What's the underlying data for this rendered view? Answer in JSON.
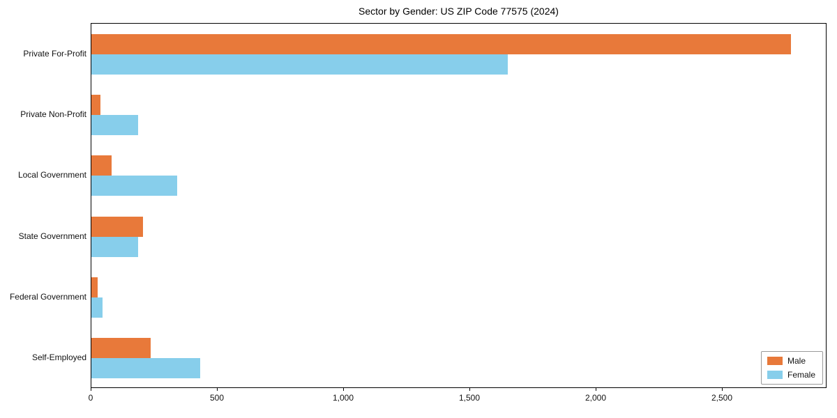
{
  "chart_data": {
    "type": "bar",
    "orientation": "horizontal",
    "title": "Sector by Gender: US ZIP Code 77575 (2024)",
    "categories": [
      "Private For-Profit",
      "Private Non-Profit",
      "Local Government",
      "State Government",
      "Federal Government",
      "Self-Employed"
    ],
    "series": [
      {
        "name": "Male",
        "color": "#e8793a",
        "values": [
          2770,
          35,
          80,
          205,
          25,
          235
        ]
      },
      {
        "name": "Female",
        "color": "#87ceeb",
        "values": [
          1650,
          185,
          340,
          185,
          45,
          430
        ]
      }
    ],
    "xlim": [
      0,
      2915
    ],
    "xticks": [
      0,
      500,
      1000,
      1500,
      2000,
      2500
    ],
    "xtick_labels": [
      "0",
      "500",
      "1,000",
      "1,500",
      "2,000",
      "2,500"
    ],
    "legend_position": "lower right",
    "grid": false
  }
}
